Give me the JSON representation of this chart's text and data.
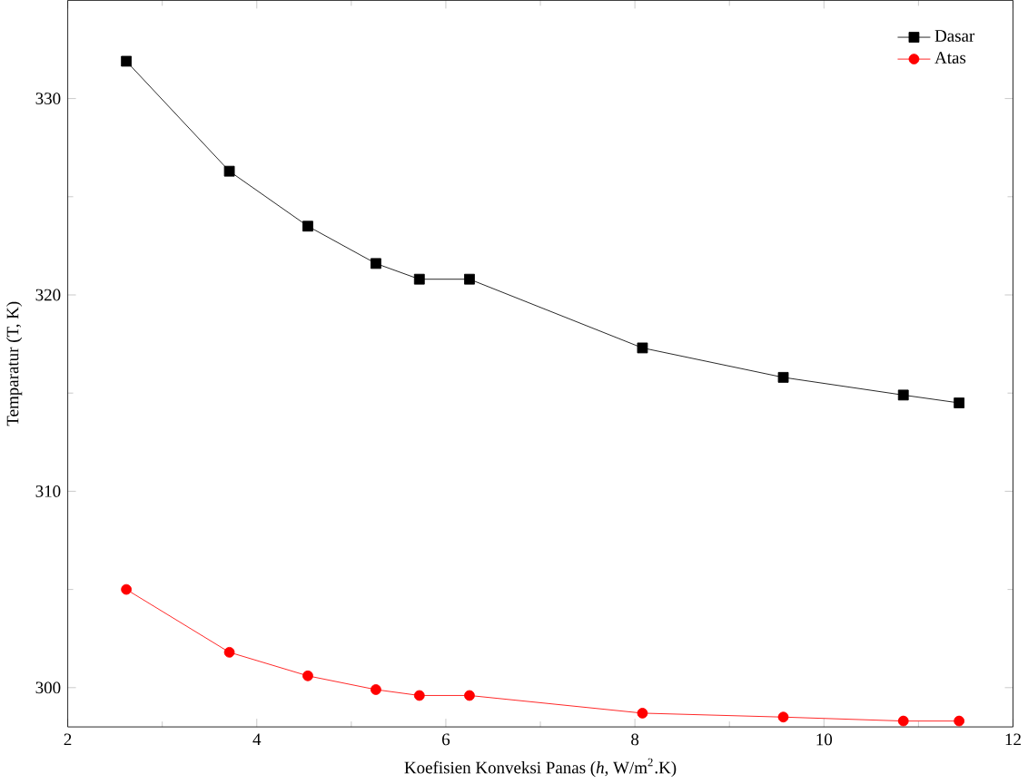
{
  "chart_data": {
    "type": "line",
    "xlabel": "Koefisien Konveksi Panas (*h*, W/m$^{2}$.K)",
    "ylabel": "Temparatur (T, K)",
    "x": [
      2.62,
      3.71,
      4.54,
      5.26,
      5.72,
      6.25,
      8.08,
      9.57,
      10.84,
      11.43
    ],
    "series": [
      {
        "name": "Dasar",
        "color": "#000000",
        "marker": "square",
        "values": [
          331.9,
          326.3,
          323.5,
          321.6,
          320.8,
          320.8,
          317.3,
          315.8,
          314.9,
          314.5
        ]
      },
      {
        "name": "Atas",
        "color": "#ff0000",
        "marker": "circle",
        "values": [
          305.0,
          301.8,
          300.6,
          299.9,
          299.6,
          299.6,
          298.7,
          298.5,
          298.3,
          298.3
        ]
      }
    ],
    "xlim": [
      2,
      12
    ],
    "ylim": [
      298,
      335
    ],
    "xticks": [
      2,
      4,
      6,
      8,
      10,
      12
    ],
    "yticks": [
      300,
      310,
      320,
      330
    ],
    "legend": "top right",
    "grid": false,
    "line_style": "solid"
  }
}
